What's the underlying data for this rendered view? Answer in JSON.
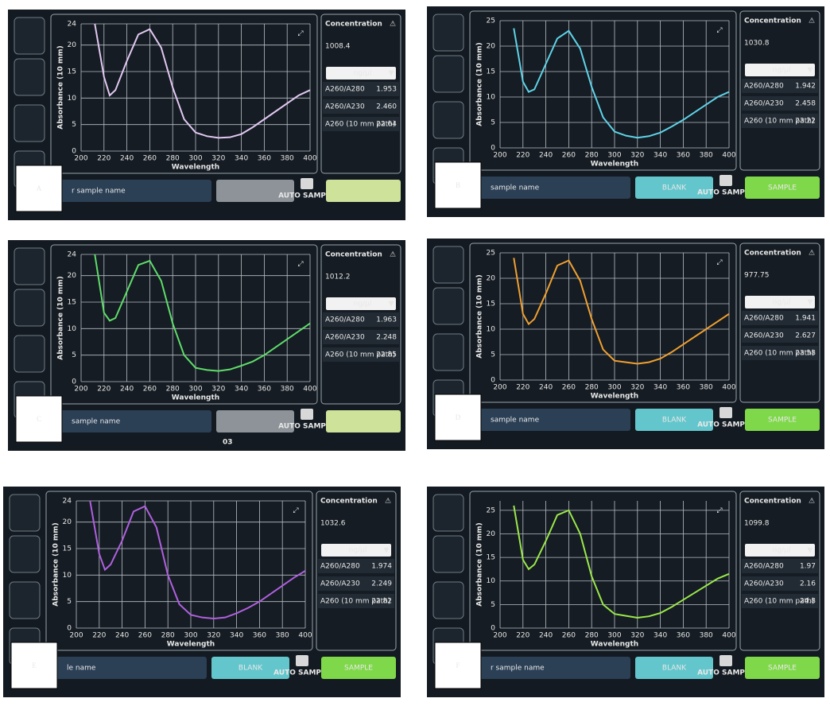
{
  "chart_data": [
    {
      "type": "line",
      "x_label": "Wavelength",
      "y_label": "Absorbance (10 mm)",
      "grid": true,
      "x": [
        212,
        220,
        225,
        230,
        240,
        250,
        260,
        270,
        280,
        290,
        300,
        310,
        320,
        330,
        340,
        350,
        360,
        370,
        380,
        390,
        400
      ],
      "xlim": [
        200,
        400
      ],
      "xticks": [
        200,
        220,
        240,
        260,
        280,
        300,
        320,
        340,
        360,
        380,
        400
      ],
      "ylim": [
        0,
        24
      ],
      "yticks": [
        0,
        5,
        10,
        15,
        20,
        24
      ],
      "series": [
        {
          "color": "#e2c8f2",
          "values": [
            24,
            14,
            10.5,
            11.5,
            17,
            22,
            23,
            19.5,
            12,
            6,
            3.5,
            2.8,
            2.5,
            2.6,
            3.2,
            4.5,
            6,
            7.5,
            9,
            10.5,
            11.5
          ]
        }
      ]
    },
    {
      "type": "line",
      "x_label": "Wavelength",
      "y_label": "Absorbance (10 mm)",
      "grid": true,
      "x": [
        212,
        220,
        225,
        230,
        240,
        250,
        260,
        270,
        280,
        290,
        300,
        310,
        320,
        330,
        340,
        350,
        360,
        370,
        380,
        390,
        400
      ],
      "xlim": [
        200,
        400
      ],
      "xticks": [
        200,
        220,
        240,
        260,
        280,
        300,
        320,
        340,
        360,
        380,
        400
      ],
      "ylim": [
        0,
        25
      ],
      "yticks": [
        0,
        5,
        10,
        15,
        20,
        25
      ],
      "series": [
        {
          "color": "#5fd3e8",
          "values": [
            23.5,
            13,
            11,
            11.5,
            16.5,
            21.5,
            23,
            19.5,
            12,
            6,
            3.2,
            2.4,
            2,
            2.3,
            3,
            4.2,
            5.5,
            7,
            8.5,
            10,
            11
          ]
        }
      ]
    },
    {
      "type": "line",
      "x_label": "Wavelength",
      "y_label": "Absorbance (10 mm)",
      "grid": true,
      "x": [
        212,
        220,
        225,
        230,
        240,
        250,
        260,
        270,
        280,
        290,
        300,
        310,
        320,
        330,
        340,
        350,
        360,
        370,
        380,
        390,
        400
      ],
      "xlim": [
        200,
        400
      ],
      "xticks": [
        200,
        220,
        240,
        260,
        280,
        300,
        320,
        340,
        360,
        380,
        400
      ],
      "ylim": [
        0,
        24
      ],
      "yticks": [
        0,
        5,
        10,
        15,
        20,
        24
      ],
      "series": [
        {
          "color": "#5fdc6a",
          "values": [
            24,
            13,
            11.5,
            12,
            17,
            22,
            22.8,
            19,
            11,
            5,
            2.6,
            2.2,
            2,
            2.3,
            3,
            3.8,
            5,
            6.5,
            8,
            9.5,
            11
          ]
        }
      ]
    },
    {
      "type": "line",
      "x_label": "Wavelength",
      "y_label": "Absorbance (10 mm)",
      "grid": true,
      "x": [
        212,
        220,
        225,
        230,
        240,
        250,
        260,
        270,
        280,
        290,
        300,
        310,
        320,
        330,
        340,
        350,
        360,
        370,
        380,
        390,
        400
      ],
      "xlim": [
        200,
        400
      ],
      "xticks": [
        200,
        220,
        240,
        260,
        280,
        300,
        320,
        340,
        360,
        380,
        400
      ],
      "ylim": [
        0,
        25
      ],
      "yticks": [
        0,
        5,
        10,
        15,
        20,
        25
      ],
      "series": [
        {
          "color": "#f0a030",
          "values": [
            24,
            13,
            11,
            12,
            17,
            22.5,
            23.5,
            19.5,
            12,
            6,
            3.8,
            3.5,
            3.2,
            3.5,
            4.2,
            5.5,
            7,
            8.5,
            10,
            11.5,
            13
          ]
        }
      ]
    },
    {
      "type": "line",
      "x_label": "Wavelength",
      "y_label": "Absorbance (10 mm)",
      "grid": true,
      "x": [
        212,
        220,
        225,
        230,
        240,
        250,
        260,
        270,
        280,
        290,
        300,
        310,
        320,
        330,
        340,
        350,
        360,
        370,
        380,
        390,
        400
      ],
      "xlim": [
        200,
        400
      ],
      "xticks": [
        200,
        220,
        240,
        260,
        280,
        300,
        320,
        340,
        360,
        380,
        400
      ],
      "ylim": [
        0,
        24
      ],
      "yticks": [
        0,
        5,
        10,
        15,
        20,
        24
      ],
      "series": [
        {
          "color": "#b060e0",
          "values": [
            24,
            14,
            11,
            12,
            16.5,
            22,
            23,
            19,
            10,
            4.5,
            2.5,
            2,
            1.8,
            2,
            2.8,
            3.8,
            5,
            6.5,
            8,
            9.5,
            10.8
          ]
        }
      ]
    },
    {
      "type": "line",
      "x_label": "Wavelength",
      "y_label": "Absorbance (10 mm)",
      "grid": true,
      "x": [
        212,
        220,
        225,
        230,
        240,
        250,
        260,
        270,
        280,
        290,
        300,
        310,
        320,
        330,
        340,
        350,
        360,
        370,
        380,
        390,
        400
      ],
      "xlim": [
        200,
        400
      ],
      "xticks": [
        200,
        220,
        240,
        260,
        280,
        300,
        320,
        340,
        360,
        380,
        400
      ],
      "ylim": [
        0,
        27
      ],
      "yticks": [
        0,
        5,
        10,
        15,
        20,
        25
      ],
      "series": [
        {
          "color": "#9be84a",
          "values": [
            26,
            14.5,
            12.5,
            13.5,
            18.5,
            24,
            25,
            20,
            11,
            5,
            3,
            2.6,
            2.2,
            2.5,
            3.2,
            4.5,
            6,
            7.5,
            9,
            10.5,
            11.5
          ]
        }
      ]
    }
  ],
  "panels": [
    {
      "label": "A",
      "concentration_title": "Concentration",
      "concentration": "1008.4",
      "unit": "ng/µl",
      "rows": [
        [
          "A260/A280",
          "1.953"
        ],
        [
          "A260/A230",
          "2.460"
        ],
        [
          "A260 (10 mm path)",
          "22.64"
        ]
      ],
      "sample_name": "r sample name",
      "auto_sample": "AUTO SAMPLE"
    },
    {
      "label": "B",
      "concentration_title": "Concentration",
      "concentration": "1030.8",
      "unit": "ng/µl",
      "rows": [
        [
          "A260/A280",
          "1.942"
        ],
        [
          "A260/A230",
          "2.458"
        ],
        [
          "A260 (10 mm path)",
          "23.22"
        ]
      ],
      "sample_name": "sample name",
      "blank": "BLANK",
      "auto_sample": "AUTO SAMPLE",
      "sample": "SAMPLE"
    },
    {
      "label": "C",
      "concentration_title": "Concentration",
      "concentration": "1012.2",
      "unit": "ng/µl",
      "rows": [
        [
          "A260/A280",
          "1.963"
        ],
        [
          "A260/A230",
          "2.248"
        ],
        [
          "A260 (10 mm path)",
          "22.85"
        ]
      ],
      "sample_name": "sample name",
      "auto_sample": "AUTO SAMPLE",
      "overlay_text": "03"
    },
    {
      "label": "D",
      "concentration_title": "Concentration",
      "concentration": "977.75",
      "unit": "ng/µl",
      "rows": [
        [
          "A260/A280",
          "1.941"
        ],
        [
          "A260/A230",
          "2.627"
        ],
        [
          "A260 (10 mm path)",
          "23.58"
        ]
      ],
      "sample_name": "sample name",
      "blank": "BLANK",
      "auto_sample": "AUTO SAMPLE",
      "sample": "SAMPLE"
    },
    {
      "label": "E",
      "concentration_title": "Concentration",
      "concentration": "1032.6",
      "unit": "ng/µl",
      "rows": [
        [
          "A260/A280",
          "1.974"
        ],
        [
          "A260/A230",
          "2.249"
        ],
        [
          "A260 (10 mm path)",
          "22.82"
        ]
      ],
      "sample_name": "le name",
      "blank": "BLANK",
      "auto_sample": "AUTO SAMPLE",
      "sample": "SAMPLE"
    },
    {
      "label": "F",
      "concentration_title": "Concentration",
      "concentration": "1099.8",
      "unit": "ng/µl",
      "rows": [
        [
          "A260/A280",
          "1.97"
        ],
        [
          "A260/A230",
          "2.16"
        ],
        [
          "A260 (10 mm path)",
          "24.8"
        ]
      ],
      "sample_name": "r sample name",
      "blank": "BLANK",
      "auto_sample": "AUTO SAMPLE",
      "sample": "SAMPLE"
    }
  ]
}
